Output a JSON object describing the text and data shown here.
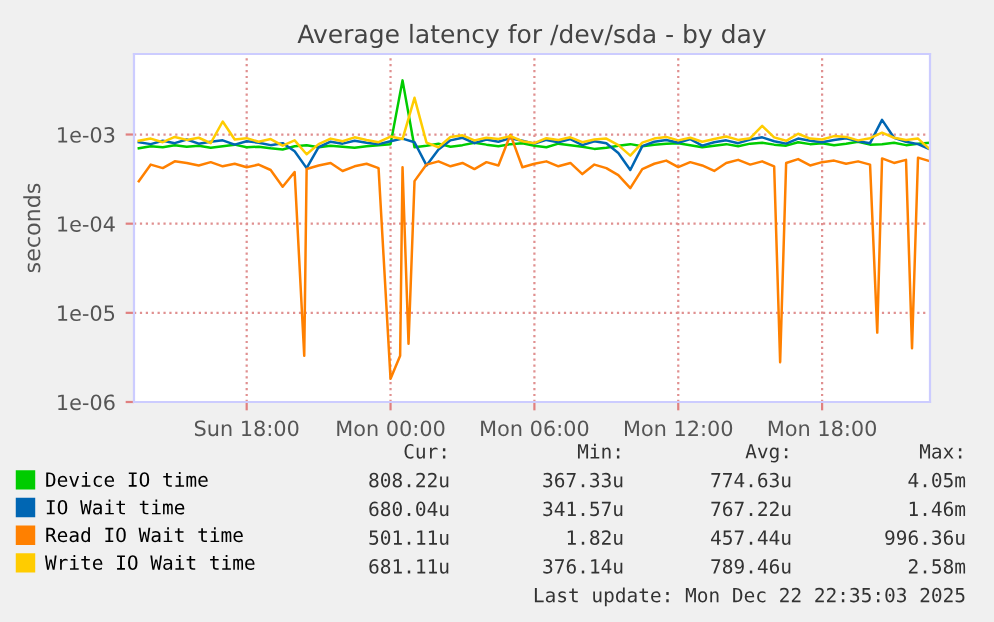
{
  "chart_data": {
    "type": "line",
    "title": "Average latency for /dev/sda - by day",
    "ylabel": "seconds",
    "log": true,
    "grid": true,
    "legend": "bottom",
    "marker": "none",
    "line_style": "solid",
    "xlim": [
      "2025-12-21T13:18",
      "2025-12-22T22:30"
    ],
    "xticks": [
      {
        "value": "2025-12-21T18:00",
        "label": "Sun 18:00"
      },
      {
        "value": "2025-12-22T00:00",
        "label": "Mon 00:00"
      },
      {
        "value": "2025-12-22T06:00",
        "label": "Mon 06:00"
      },
      {
        "value": "2025-12-22T12:00",
        "label": "Mon 12:00"
      },
      {
        "value": "2025-12-22T18:00",
        "label": "Mon 18:00"
      }
    ],
    "ylim": [
      1e-06,
      0.008
    ],
    "yticks": [
      {
        "value": 1e-06,
        "label": "1e-06"
      },
      {
        "value": 1e-05,
        "label": "1e-05"
      },
      {
        "value": 0.0001,
        "label": "1e-04"
      },
      {
        "value": 0.001,
        "label": "1e-03"
      }
    ],
    "x": [
      "2025-12-21T13:30",
      "2025-12-21T14:00",
      "2025-12-21T14:30",
      "2025-12-21T15:00",
      "2025-12-21T15:30",
      "2025-12-21T16:00",
      "2025-12-21T16:30",
      "2025-12-21T17:00",
      "2025-12-21T17:30",
      "2025-12-21T18:00",
      "2025-12-21T18:30",
      "2025-12-21T19:00",
      "2025-12-21T19:30",
      "2025-12-21T20:00",
      "2025-12-21T20:30",
      "2025-12-21T21:00",
      "2025-12-21T21:30",
      "2025-12-21T22:00",
      "2025-12-21T22:30",
      "2025-12-21T23:00",
      "2025-12-21T23:30",
      "2025-12-22T00:00",
      "2025-12-22T00:30",
      "2025-12-22T01:00",
      "2025-12-22T01:30",
      "2025-12-22T02:00",
      "2025-12-22T02:30",
      "2025-12-22T03:00",
      "2025-12-22T03:30",
      "2025-12-22T04:00",
      "2025-12-22T04:30",
      "2025-12-22T05:00",
      "2025-12-22T05:30",
      "2025-12-22T06:00",
      "2025-12-22T06:30",
      "2025-12-22T07:00",
      "2025-12-22T07:30",
      "2025-12-22T08:00",
      "2025-12-22T08:30",
      "2025-12-22T09:00",
      "2025-12-22T09:30",
      "2025-12-22T10:00",
      "2025-12-22T10:30",
      "2025-12-22T11:00",
      "2025-12-22T11:30",
      "2025-12-22T12:00",
      "2025-12-22T12:30",
      "2025-12-22T13:00",
      "2025-12-22T13:30",
      "2025-12-22T14:00",
      "2025-12-22T14:30",
      "2025-12-22T15:00",
      "2025-12-22T15:30",
      "2025-12-22T16:00",
      "2025-12-22T16:30",
      "2025-12-22T17:00",
      "2025-12-22T17:30",
      "2025-12-22T18:00",
      "2025-12-22T18:30",
      "2025-12-22T19:00",
      "2025-12-22T19:30",
      "2025-12-22T20:00",
      "2025-12-22T20:30",
      "2025-12-22T21:00",
      "2025-12-22T21:30",
      "2025-12-22T22:00",
      "2025-12-22T22:30"
    ],
    "series": [
      {
        "name": "Device IO time",
        "color": "#00cc00",
        "values": [
          0.0007,
          0.00074,
          0.00072,
          0.00076,
          0.00073,
          0.00075,
          0.00071,
          0.00074,
          0.00077,
          0.00072,
          0.00073,
          0.0007,
          0.00068,
          0.00074,
          0.00076,
          0.00072,
          0.00075,
          0.00073,
          0.00071,
          0.00074,
          0.00076,
          0.00078,
          0.00405,
          0.00072,
          0.00075,
          0.00079,
          0.00073,
          0.00076,
          0.00081,
          0.00077,
          0.00074,
          0.00078,
          0.0008,
          0.00075,
          0.00072,
          0.00079,
          0.00076,
          0.00073,
          0.00069,
          0.00071,
          0.00075,
          0.00078,
          0.00074,
          0.00077,
          0.00079,
          0.0008,
          0.00076,
          0.00072,
          0.00075,
          0.00078,
          0.00074,
          0.00079,
          0.00081,
          0.00077,
          0.00075,
          0.00082,
          0.00078,
          0.0008,
          0.00076,
          0.00079,
          0.00083,
          0.00077,
          0.00078,
          0.00081,
          0.00076,
          0.00079,
          0.000808
        ]
      },
      {
        "name": "IO Wait time",
        "color": "#0066b3",
        "values": [
          0.00082,
          0.00078,
          0.00085,
          0.0008,
          0.00088,
          0.00079,
          0.00083,
          0.00086,
          0.00077,
          0.00084,
          0.00081,
          0.00076,
          0.0008,
          0.00065,
          0.00042,
          0.00072,
          0.00083,
          0.00079,
          0.00085,
          0.00081,
          0.00078,
          0.00084,
          0.0009,
          0.00082,
          0.00045,
          0.00068,
          0.00086,
          0.00092,
          0.0008,
          0.00088,
          0.00083,
          0.00091,
          0.00085,
          0.00079,
          0.00087,
          0.00082,
          0.00089,
          0.00076,
          0.00084,
          0.0008,
          0.00062,
          0.0004,
          0.00074,
          0.00083,
          0.00087,
          0.00081,
          0.00089,
          0.00075,
          0.00082,
          0.00086,
          0.0008,
          0.00088,
          0.00093,
          0.00084,
          0.00079,
          0.0009,
          0.00085,
          0.00082,
          0.00087,
          0.00091,
          0.00084,
          0.0008,
          0.00146,
          0.00092,
          0.00083,
          0.00078,
          0.00068
        ]
      },
      {
        "name": "Read IO Wait time",
        "color": "#ff8000",
        "x": [
          "2025-12-21T13:30",
          "2025-12-21T14:00",
          "2025-12-21T14:30",
          "2025-12-21T15:00",
          "2025-12-21T15:30",
          "2025-12-21T16:00",
          "2025-12-21T16:30",
          "2025-12-21T17:00",
          "2025-12-21T17:30",
          "2025-12-21T18:00",
          "2025-12-21T18:30",
          "2025-12-21T19:00",
          "2025-12-21T19:30",
          "2025-12-21T20:00",
          "2025-12-21T20:24",
          "2025-12-21T20:30",
          "2025-12-21T21:00",
          "2025-12-21T21:30",
          "2025-12-21T22:00",
          "2025-12-21T22:30",
          "2025-12-21T23:00",
          "2025-12-21T23:30",
          "2025-12-22T00:00",
          "2025-12-22T00:24",
          "2025-12-22T00:30",
          "2025-12-22T00:45",
          "2025-12-22T01:00",
          "2025-12-22T01:30",
          "2025-12-22T02:00",
          "2025-12-22T02:30",
          "2025-12-22T03:00",
          "2025-12-22T03:30",
          "2025-12-22T04:00",
          "2025-12-22T04:30",
          "2025-12-22T05:00",
          "2025-12-22T05:30",
          "2025-12-22T06:00",
          "2025-12-22T06:30",
          "2025-12-22T07:00",
          "2025-12-22T07:30",
          "2025-12-22T08:00",
          "2025-12-22T08:30",
          "2025-12-22T09:00",
          "2025-12-22T09:30",
          "2025-12-22T10:00",
          "2025-12-22T10:30",
          "2025-12-22T11:00",
          "2025-12-22T11:30",
          "2025-12-22T12:00",
          "2025-12-22T12:30",
          "2025-12-22T13:00",
          "2025-12-22T13:30",
          "2025-12-22T14:00",
          "2025-12-22T14:30",
          "2025-12-22T15:00",
          "2025-12-22T15:30",
          "2025-12-22T16:00",
          "2025-12-22T16:15",
          "2025-12-22T16:30",
          "2025-12-22T17:00",
          "2025-12-22T17:30",
          "2025-12-22T18:00",
          "2025-12-22T18:30",
          "2025-12-22T19:00",
          "2025-12-22T19:30",
          "2025-12-22T20:00",
          "2025-12-22T20:18",
          "2025-12-22T20:30",
          "2025-12-22T21:00",
          "2025-12-22T21:30",
          "2025-12-22T21:45",
          "2025-12-22T22:00",
          "2025-12-22T22:30"
        ],
        "values": [
          0.0003,
          0.00046,
          0.00042,
          0.0005,
          0.00048,
          0.00045,
          0.00049,
          0.00044,
          0.00047,
          0.00043,
          0.00046,
          0.0004,
          0.00026,
          0.00038,
          3.3e-06,
          0.00041,
          0.00045,
          0.00048,
          0.00039,
          0.00044,
          0.00047,
          0.00042,
          1.82e-06,
          3.3e-06,
          0.00043,
          4.5e-06,
          0.0003,
          0.00046,
          0.0005,
          0.00044,
          0.00048,
          0.00041,
          0.00049,
          0.00045,
          0.000996,
          0.00043,
          0.00047,
          0.0005,
          0.00044,
          0.00048,
          0.00036,
          0.00046,
          0.00042,
          0.00035,
          0.00025,
          0.00041,
          0.00047,
          0.00051,
          0.00043,
          0.00049,
          0.00045,
          0.00039,
          0.00048,
          0.00052,
          0.00046,
          0.0005,
          0.00044,
          2.8e-06,
          0.00048,
          0.00053,
          0.00045,
          0.00049,
          0.00051,
          0.00047,
          0.0005,
          0.00046,
          6e-06,
          0.00054,
          0.00048,
          0.00052,
          4e-06,
          0.00055,
          0.000501
        ]
      },
      {
        "name": "Write IO Wait time",
        "color": "#ffcc00",
        "values": [
          0.00085,
          0.0009,
          0.00082,
          0.00094,
          0.00087,
          0.00092,
          0.0008,
          0.0014,
          0.00088,
          0.00091,
          0.00083,
          0.00089,
          0.00075,
          0.00086,
          0.0006,
          0.00078,
          0.0009,
          0.00084,
          0.00093,
          0.00087,
          0.00082,
          0.00095,
          0.00089,
          0.00258,
          0.00081,
          0.00072,
          0.00094,
          0.00098,
          0.00086,
          0.00092,
          0.00089,
          0.00096,
          0.00084,
          0.0008,
          0.00091,
          0.00087,
          0.00093,
          0.00082,
          0.00088,
          0.0009,
          0.00076,
          0.00058,
          0.00081,
          0.0009,
          0.00094,
          0.00086,
          0.00092,
          0.00083,
          0.00089,
          0.00095,
          0.00087,
          0.00091,
          0.00125,
          0.00093,
          0.00085,
          0.00102,
          0.0009,
          0.00088,
          0.00096,
          0.00094,
          0.00086,
          0.00091,
          0.00105,
          0.00092,
          0.00087,
          0.0009,
          0.000681
        ]
      }
    ],
    "annotations": [
      "Cur:",
      "Min:",
      "Avg:",
      "Max:",
      "808.22u",
      "367.33u",
      "774.63u",
      "4.05m",
      "680.04u",
      "341.57u",
      "767.22u",
      "1.46m",
      "501.11u",
      "1.82u",
      "457.44u",
      "996.36u",
      "681.11u",
      "376.14u",
      "789.46u",
      "2.58m",
      "Last update: Mon Dec 22 22:35:03 2025"
    ]
  }
}
